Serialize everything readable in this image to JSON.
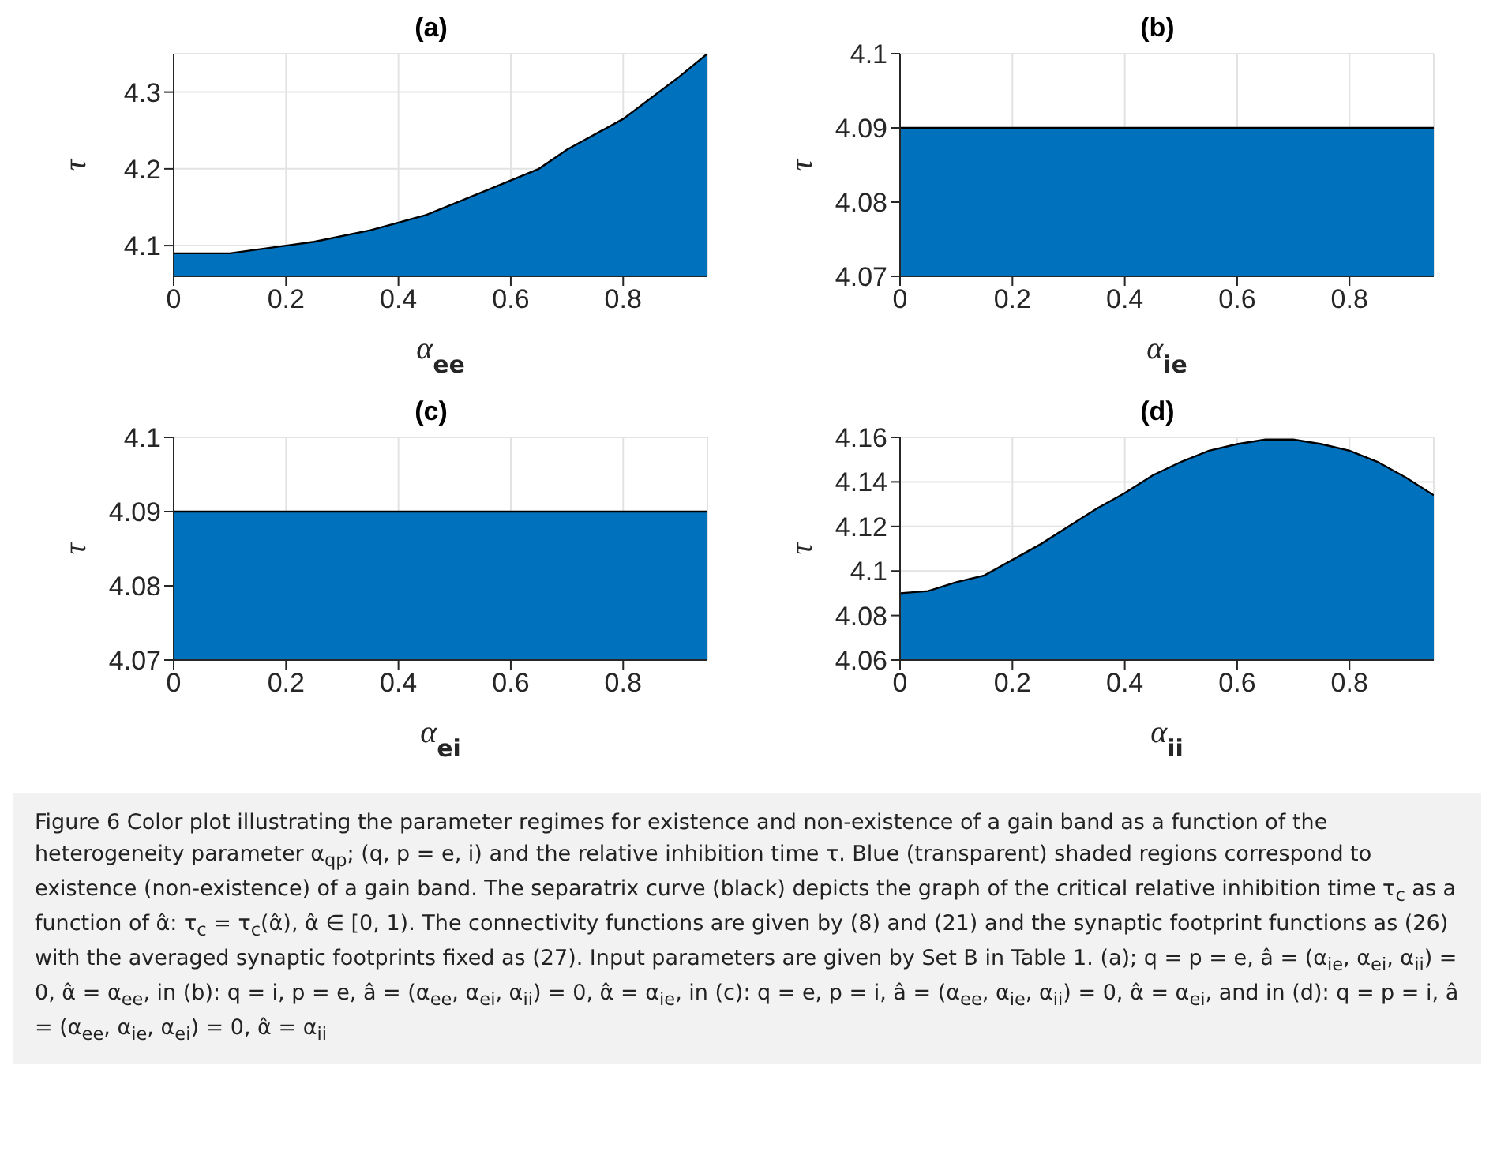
{
  "chart_data": [
    {
      "type": "area",
      "title": "(a)",
      "xlabel": "α$_{ee}$",
      "ylabel": "τ",
      "x": [
        0,
        0.1,
        0.2,
        0.25,
        0.35,
        0.45,
        0.55,
        0.65,
        0.7,
        0.8,
        0.9,
        0.95
      ],
      "series": [
        {
          "color": "#0072bd",
          "values": [
            4.09,
            4.09,
            4.1,
            4.105,
            4.12,
            4.14,
            4.17,
            4.2,
            4.225,
            4.265,
            4.32,
            4.35
          ]
        }
      ],
      "xlim": [
        0,
        0.95
      ],
      "xticks": [
        0,
        0.2,
        0.4,
        0.6,
        0.8
      ],
      "ylim": [
        4.06,
        4.35
      ],
      "yticks": [
        4.1,
        4.2,
        4.3
      ],
      "grid": true,
      "annotations": [
        "Figure 6 Color plot illustrating the parameter regimes for existence and non-existence of a gain band as a function of the heterogeneity parameter α$_{qp}$; (q, p = e, i) and the relative inhibition time τ. Blue (transparent) shaded regions correspond to existence (non-existence) of a gain band. The separatrix curve (black) depicts the graph of the critical relative inhibition time τ$_{c}$ as a function of α̂: τ$_{c}$ = τ$_{c}$(α̂), α̂ ∈ [0, 1). The connectivity functions are given by (8) and (21) and the synaptic footprint functions as (26) with the averaged synaptic footprints fixed as (27). Input parameters are given by Set B in Table 1. (a); q = p = e, â = (α$_{ie}$, α$_{ei}$, α$_{ii}$) = 0, α̂ = α$_{ee}$, in (b): q = i, p = e, â = (α$_{ee}$, α$_{ei}$, α$_{ii}$) = 0, α̂ = α$_{ie}$, in (c): q = e, p = i, â = (α$_{ee}$, α$_{ie}$, α$_{ii}$) = 0, α̂ = α$_{ei}$, and in (d): q = p = i, â = (α$_{ee}$, α$_{ie}$, α$_{ei}$) = 0, α̂ = α$_{ii}$"
      ]
    },
    {
      "type": "area",
      "title": "(b)",
      "xlabel": "α$_{ie}$",
      "ylabel": "τ",
      "x": [
        0,
        0.95
      ],
      "series": [
        {
          "color": "#0072bd",
          "values": [
            4.09,
            4.09
          ]
        }
      ],
      "xlim": [
        0,
        0.95
      ],
      "xticks": [
        0,
        0.2,
        0.4,
        0.6,
        0.8
      ],
      "ylim": [
        4.07,
        4.1
      ],
      "yticks": [
        4.07,
        4.08,
        4.09,
        4.1
      ],
      "grid": true
    },
    {
      "type": "area",
      "title": "(c)",
      "xlabel": "α$_{ei}$",
      "ylabel": "τ",
      "x": [
        0,
        0.95
      ],
      "series": [
        {
          "color": "#0072bd",
          "values": [
            4.09,
            4.09
          ]
        }
      ],
      "xlim": [
        0,
        0.95
      ],
      "xticks": [
        0,
        0.2,
        0.4,
        0.6,
        0.8
      ],
      "ylim": [
        4.07,
        4.1
      ],
      "yticks": [
        4.07,
        4.08,
        4.09,
        4.1
      ],
      "grid": true
    },
    {
      "type": "area",
      "title": "(d)",
      "xlabel": "α$_{ii}$",
      "ylabel": "τ",
      "x": [
        0,
        0.05,
        0.1,
        0.15,
        0.2,
        0.25,
        0.3,
        0.35,
        0.4,
        0.45,
        0.5,
        0.55,
        0.6,
        0.65,
        0.7,
        0.75,
        0.8,
        0.85,
        0.9,
        0.95
      ],
      "series": [
        {
          "color": "#0072bd",
          "values": [
            4.09,
            4.091,
            4.095,
            4.098,
            4.105,
            4.112,
            4.12,
            4.128,
            4.135,
            4.143,
            4.149,
            4.154,
            4.157,
            4.159,
            4.159,
            4.157,
            4.154,
            4.149,
            4.142,
            4.134
          ]
        }
      ],
      "xlim": [
        0,
        0.95
      ],
      "xticks": [
        0,
        0.2,
        0.4,
        0.6,
        0.8
      ],
      "ylim": [
        4.06,
        4.16
      ],
      "yticks": [
        4.06,
        4.08,
        4.1,
        4.12,
        4.14,
        4.16
      ],
      "grid": true
    }
  ]
}
